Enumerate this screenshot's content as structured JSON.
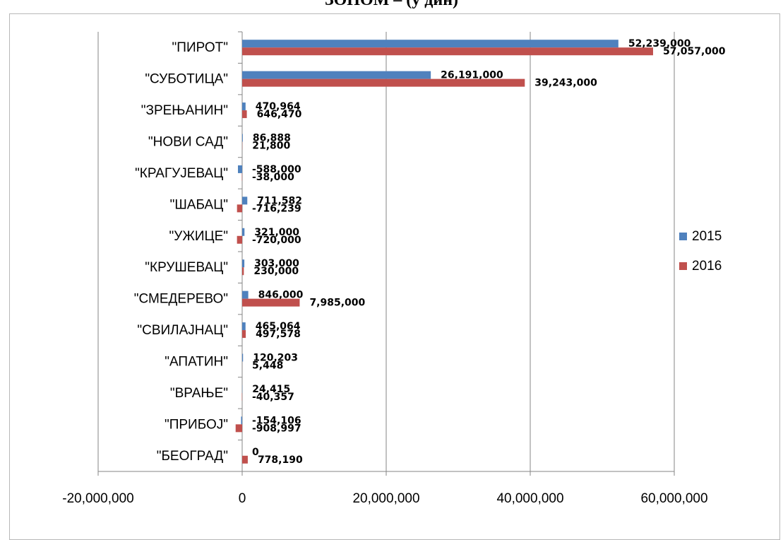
{
  "header": {
    "title": "ЗОНОМ – (у дин)"
  },
  "chart_data": {
    "type": "bar",
    "orientation": "horizontal",
    "title": "ЗОНОМ – (у дин)",
    "categories": [
      "\"ПИРОТ\"",
      "\"СУБОТИЦА\"",
      "\"ЗРЕЊАНИН\"",
      "\"НОВИ САД\"",
      "\"КРАГУЈЕВАЦ\"",
      "\"ШАБАЦ\"",
      "\"УЖИЦЕ\"",
      "\"КРУШЕВАЦ\"",
      "\"СМЕДЕРЕВО\"",
      "\"СВИЛАЈНАЦ\"",
      "\"АПАТИН\"",
      "\"ВРАЊЕ\"",
      "\"ПРИБОЈ\"",
      "\"БЕОГРАД\""
    ],
    "series": [
      {
        "name": "2015",
        "color": "#4f81bd",
        "values": [
          52239000,
          26191000,
          470964,
          86888,
          -588000,
          711582,
          321000,
          303000,
          846000,
          465064,
          120203,
          24415,
          -154106,
          0
        ],
        "labels": [
          "52,239,000",
          "26,191,000",
          "470,964",
          "86,888",
          "-588,000",
          "711,582",
          "321,000",
          "303,000",
          "846,000",
          "465,064",
          "120,203",
          "24,415",
          "-154,106",
          "0"
        ]
      },
      {
        "name": "2016",
        "color": "#c0504d",
        "values": [
          57057000,
          39243000,
          646470,
          21800,
          -38000,
          -716239,
          -720000,
          230000,
          7985000,
          497578,
          5448,
          -40357,
          -908997,
          778190
        ],
        "labels": [
          "57,057,000",
          "39,243,000",
          "646,470",
          "21,800",
          "-38,000",
          "-716,239",
          "-720,000",
          "230,000",
          "7,985,000",
          "497,578",
          "5,448",
          "-40,357",
          "-908,997",
          "778,190"
        ]
      }
    ],
    "xlim": [
      -20000000,
      60000000
    ],
    "x_ticks": [
      -20000000,
      0,
      20000000,
      40000000,
      60000000
    ],
    "x_tick_labels": [
      "-20,000,000",
      "0",
      "20,000,000",
      "40,000,000",
      "60,000,000"
    ],
    "grid": true,
    "legend": "right"
  }
}
